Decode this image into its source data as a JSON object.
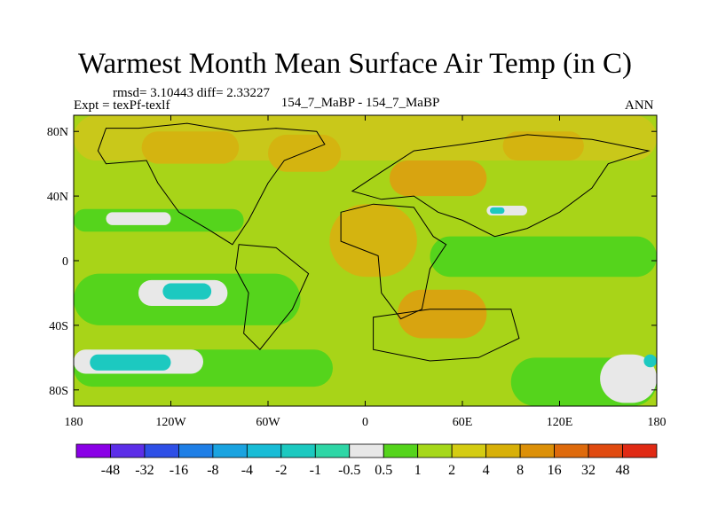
{
  "chart_data": {
    "type": "heatmap",
    "title": "Warmest Month Mean Surface Air Temp (in C)",
    "stats_text": "rmsd= 3.10443 diff= 2.33227",
    "left_label": "Expt = texPf-texlf",
    "center_label": "154_7_MaBP - 154_7_MaBP",
    "right_label": "ANN",
    "x_ticks": [
      "180",
      "120W",
      "60W",
      "0",
      "60E",
      "120E",
      "180"
    ],
    "y_ticks": [
      "80N",
      "40N",
      "0",
      "40S",
      "80S"
    ],
    "x_range": [
      -180,
      180
    ],
    "y_range": [
      -90,
      90
    ],
    "colorbar": {
      "labels": [
        "-48",
        "-32",
        "-16",
        "-8",
        "-4",
        "-2",
        "-1",
        "-0.5",
        "0.5",
        "1",
        "2",
        "4",
        "8",
        "16",
        "32",
        "48"
      ],
      "colors": [
        "#8a00e6",
        "#5c2ee8",
        "#2e4fe6",
        "#1f7fe6",
        "#1aa3e0",
        "#18bcd6",
        "#1cc9c0",
        "#2ed6a6",
        "#e8e8e8",
        "#55d41c",
        "#a6d81a",
        "#d4cc12",
        "#d8b008",
        "#dc9008",
        "#de6a0c",
        "#e04a10",
        "#e02a14"
      ]
    },
    "regions": [
      {
        "color": "#a8d418",
        "lon": [
          -180,
          180
        ],
        "lat": [
          -90,
          90
        ]
      },
      {
        "color": "#c9c81a",
        "lon": [
          -180,
          180
        ],
        "lat": [
          62,
          90
        ]
      },
      {
        "color": "#d4b410",
        "lon": [
          -138,
          -78
        ],
        "lat": [
          60,
          80
        ]
      },
      {
        "color": "#d4b410",
        "lon": [
          -60,
          -15
        ],
        "lat": [
          55,
          78
        ]
      },
      {
        "color": "#d8a410",
        "lon": [
          15,
          75
        ],
        "lat": [
          40,
          62
        ]
      },
      {
        "color": "#d4b410",
        "lon": [
          85,
          135
        ],
        "lat": [
          62,
          80
        ]
      },
      {
        "color": "#d4b410",
        "lon": [
          -22,
          32
        ],
        "lat": [
          -10,
          35
        ]
      },
      {
        "color": "#d8a410",
        "lon": [
          20,
          75
        ],
        "lat": [
          -48,
          -18
        ]
      },
      {
        "color": "#55d41c",
        "lon": [
          -180,
          -75
        ],
        "lat": [
          18,
          32
        ]
      },
      {
        "color": "#55d41c",
        "lon": [
          -180,
          -40
        ],
        "lat": [
          -40,
          -8
        ]
      },
      {
        "color": "#55d41c",
        "lon": [
          -180,
          -20
        ],
        "lat": [
          -78,
          -55
        ]
      },
      {
        "color": "#55d41c",
        "lon": [
          40,
          180
        ],
        "lat": [
          -10,
          15
        ]
      },
      {
        "color": "#55d41c",
        "lon": [
          90,
          180
        ],
        "lat": [
          -90,
          -60
        ]
      },
      {
        "color": "#e8e8e8",
        "lon": [
          -160,
          -120
        ],
        "lat": [
          22,
          30
        ]
      },
      {
        "color": "#e8e8e8",
        "lon": [
          -140,
          -85
        ],
        "lat": [
          -28,
          -12
        ]
      },
      {
        "color": "#1cc9c0",
        "lon": [
          -125,
          -95
        ],
        "lat": [
          -24,
          -14
        ]
      },
      {
        "color": "#e8e8e8",
        "lon": [
          -180,
          -100
        ],
        "lat": [
          -70,
          -55
        ]
      },
      {
        "color": "#1cc9c0",
        "lon": [
          -170,
          -120
        ],
        "lat": [
          -68,
          -58
        ]
      },
      {
        "color": "#e8e8e8",
        "lon": [
          145,
          180
        ],
        "lat": [
          -88,
          -58
        ]
      },
      {
        "color": "#1cc9c0",
        "lon": [
          172,
          180
        ],
        "lat": [
          -66,
          -58
        ]
      },
      {
        "color": "#e8e8e8",
        "lon": [
          75,
          100
        ],
        "lat": [
          28,
          34
        ]
      },
      {
        "color": "#1cc9c0",
        "lon": [
          77,
          86
        ],
        "lat": [
          29,
          33
        ]
      }
    ],
    "coastlines": [
      [
        [
          -160,
          82
        ],
        [
          -140,
          82
        ],
        [
          -110,
          85
        ],
        [
          -80,
          80
        ],
        [
          -55,
          82
        ],
        [
          -30,
          80
        ],
        [
          -25,
          72
        ],
        [
          -50,
          62
        ],
        [
          -60,
          48
        ],
        [
          -72,
          25
        ],
        [
          -82,
          10
        ],
        [
          -98,
          20
        ],
        [
          -115,
          30
        ],
        [
          -128,
          48
        ],
        [
          -135,
          62
        ],
        [
          -160,
          60
        ],
        [
          -165,
          68
        ],
        [
          -160,
          82
        ]
      ],
      [
        [
          -78,
          10
        ],
        [
          -55,
          8
        ],
        [
          -35,
          -8
        ],
        [
          -45,
          -30
        ],
        [
          -65,
          -55
        ],
        [
          -75,
          -45
        ],
        [
          -72,
          -20
        ],
        [
          -80,
          -5
        ],
        [
          -78,
          10
        ]
      ],
      [
        [
          -15,
          30
        ],
        [
          5,
          35
        ],
        [
          30,
          33
        ],
        [
          42,
          15
        ],
        [
          50,
          10
        ],
        [
          40,
          -5
        ],
        [
          35,
          -30
        ],
        [
          22,
          -36
        ],
        [
          10,
          -20
        ],
        [
          8,
          3
        ],
        [
          -15,
          12
        ],
        [
          -15,
          30
        ]
      ],
      [
        [
          -8,
          43
        ],
        [
          10,
          55
        ],
        [
          30,
          68
        ],
        [
          60,
          72
        ],
        [
          100,
          78
        ],
        [
          140,
          75
        ],
        [
          175,
          68
        ],
        [
          150,
          60
        ],
        [
          140,
          45
        ],
        [
          120,
          30
        ],
        [
          100,
          20
        ],
        [
          80,
          15
        ],
        [
          60,
          25
        ],
        [
          45,
          30
        ],
        [
          30,
          40
        ],
        [
          10,
          38
        ],
        [
          -8,
          43
        ]
      ],
      [
        [
          5,
          -35
        ],
        [
          40,
          -30
        ],
        [
          90,
          -30
        ],
        [
          95,
          -48
        ],
        [
          70,
          -60
        ],
        [
          40,
          -62
        ],
        [
          5,
          -55
        ],
        [
          5,
          -35
        ]
      ]
    ]
  }
}
